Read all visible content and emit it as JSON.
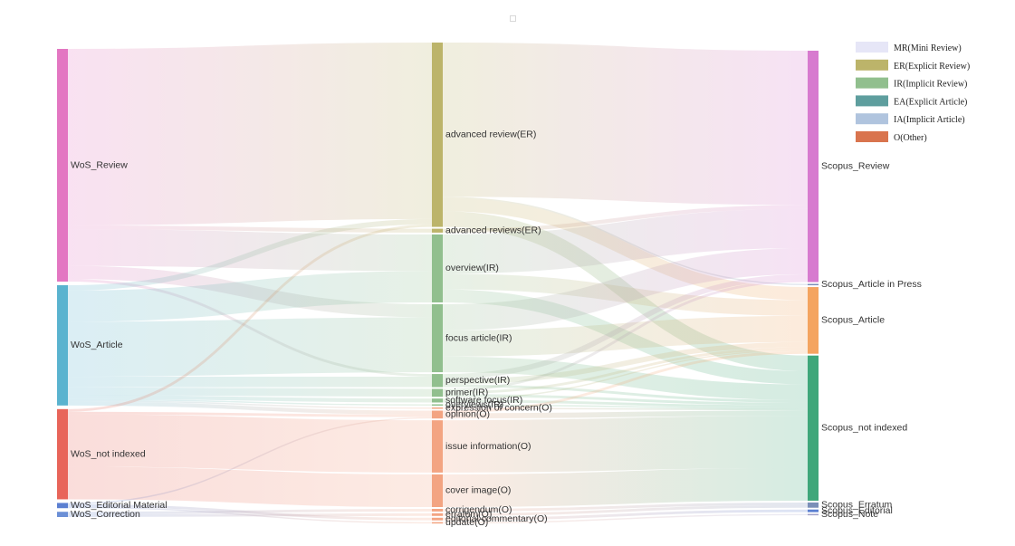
{
  "legend": [
    {
      "id": "MR",
      "label": "MR(Mini Review)",
      "color": "#e6e6f7"
    },
    {
      "id": "ER",
      "label": "ER(Explicit Review)",
      "color": "#bcb46a"
    },
    {
      "id": "IR",
      "label": "IR(Implicit Review)",
      "color": "#91bf8e"
    },
    {
      "id": "EA",
      "label": "EA(Explicit Article)",
      "color": "#5e9e9e"
    },
    {
      "id": "IA",
      "label": "IA(Implicit Article)",
      "color": "#b0c4de"
    },
    {
      "id": "O",
      "label": "O(Other)",
      "color": "#d9744e"
    }
  ],
  "nodes": {
    "left": [
      {
        "id": "wos_review",
        "label": "WoS_Review",
        "color": "#e377c2"
      },
      {
        "id": "wos_article",
        "label": "WoS_Article",
        "color": "#5ab3cf"
      },
      {
        "id": "wos_not_indexed",
        "label": "WoS_not indexed",
        "color": "#e8655a"
      },
      {
        "id": "wos_editorial",
        "label": "WoS_Editorial Material",
        "color": "#5b7fd1"
      },
      {
        "id": "wos_correction",
        "label": "WoS_Correction",
        "color": "#6b8fd6"
      }
    ],
    "middle": [
      {
        "id": "adv_review",
        "label": "advanced review(ER)",
        "color": "#bcb46a"
      },
      {
        "id": "adv_reviews",
        "label": "advanced reviews(ER)",
        "color": "#bcb46a"
      },
      {
        "id": "overview",
        "label": "overview(IR)",
        "color": "#91bf8e"
      },
      {
        "id": "focus",
        "label": "focus article(IR)",
        "color": "#91bf8e"
      },
      {
        "id": "perspective",
        "label": "perspective(IR)",
        "color": "#91bf8e"
      },
      {
        "id": "primer",
        "label": "primer(IR)",
        "color": "#91bf8e"
      },
      {
        "id": "software",
        "label": "software focus(IR)",
        "color": "#91bf8e"
      },
      {
        "id": "overviews",
        "label": "overviews(IR)",
        "color": "#91bf8e"
      },
      {
        "id": "concern",
        "label": "expression of concern(O)",
        "color": "#f3a482"
      },
      {
        "id": "opinion",
        "label": "opinion(O)",
        "color": "#f3a482"
      },
      {
        "id": "issue",
        "label": "issue information(O)",
        "color": "#f3a482"
      },
      {
        "id": "cover",
        "label": "cover image(O)",
        "color": "#f3a482"
      },
      {
        "id": "corrigendum",
        "label": "corrigendum(O)",
        "color": "#f3a482"
      },
      {
        "id": "erratum",
        "label": "erratum(O)",
        "color": "#f3a482"
      },
      {
        "id": "commentary",
        "label": "editorial commentary(O)",
        "color": "#f3a482"
      },
      {
        "id": "update",
        "label": "update(O)",
        "color": "#f3a482"
      }
    ],
    "right": [
      {
        "id": "sc_review",
        "label": "Scopus_Review",
        "color": "#d77bcf"
      },
      {
        "id": "sc_press",
        "label": "Scopus_Article in Press",
        "color": "#7b8fb8"
      },
      {
        "id": "sc_article",
        "label": "Scopus_Article",
        "color": "#f4a460"
      },
      {
        "id": "sc_not_indexed",
        "label": "Scopus_not indexed",
        "color": "#3fa77a"
      },
      {
        "id": "sc_erratum",
        "label": "Scopus_Erratum",
        "color": "#7b8fb8"
      },
      {
        "id": "sc_editorial",
        "label": "Scopus_Editorial",
        "color": "#5b7fd1"
      },
      {
        "id": "sc_note",
        "label": "Scopus_Note",
        "color": "#a0a0c8"
      }
    ]
  },
  "links": [
    {
      "source": "wos_review",
      "target": "adv_review",
      "value": 135
    },
    {
      "source": "wos_review",
      "target": "adv_reviews",
      "value": 3
    },
    {
      "source": "wos_review",
      "target": "overview",
      "value": 28
    },
    {
      "source": "wos_review",
      "target": "focus",
      "value": 10
    },
    {
      "source": "wos_review",
      "target": "perspective",
      "value": 2
    },
    {
      "source": "wos_article",
      "target": "adv_review",
      "value": 4
    },
    {
      "source": "wos_article",
      "target": "overview",
      "value": 24
    },
    {
      "source": "wos_article",
      "target": "focus",
      "value": 42
    },
    {
      "source": "wos_article",
      "target": "perspective",
      "value": 8
    },
    {
      "source": "wos_article",
      "target": "primer",
      "value": 6
    },
    {
      "source": "wos_article",
      "target": "software",
      "value": 3
    },
    {
      "source": "wos_article",
      "target": "overviews",
      "value": 1
    },
    {
      "source": "wos_article",
      "target": "concern",
      "value": 1
    },
    {
      "source": "wos_article",
      "target": "opinion",
      "value": 3
    },
    {
      "source": "wos_not_indexed",
      "target": "adv_review",
      "value": 2
    },
    {
      "source": "wos_not_indexed",
      "target": "opinion",
      "value": 2
    },
    {
      "source": "wos_not_indexed",
      "target": "issue",
      "value": 40
    },
    {
      "source": "wos_not_indexed",
      "target": "cover",
      "value": 25
    },
    {
      "source": "wos_editorial",
      "target": "commentary",
      "value": 2
    },
    {
      "source": "wos_editorial",
      "target": "update",
      "value": 1
    },
    {
      "source": "wos_editorial",
      "target": "opinion",
      "value": 1
    },
    {
      "source": "wos_correction",
      "target": "corrigendum",
      "value": 2
    },
    {
      "source": "wos_correction",
      "target": "erratum",
      "value": 2
    },
    {
      "source": "adv_review",
      "target": "sc_review",
      "value": 118
    },
    {
      "source": "adv_review",
      "target": "sc_article",
      "value": 10
    },
    {
      "source": "adv_review",
      "target": "sc_not_indexed",
      "value": 12
    },
    {
      "source": "adv_review",
      "target": "sc_press",
      "value": 1
    },
    {
      "source": "adv_reviews",
      "target": "sc_review",
      "value": 3
    },
    {
      "source": "overview",
      "target": "sc_review",
      "value": 30
    },
    {
      "source": "overview",
      "target": "sc_article",
      "value": 12
    },
    {
      "source": "overview",
      "target": "sc_not_indexed",
      "value": 10
    },
    {
      "source": "focus",
      "target": "sc_review",
      "value": 20
    },
    {
      "source": "focus",
      "target": "sc_article",
      "value": 20
    },
    {
      "source": "focus",
      "target": "sc_not_indexed",
      "value": 12
    },
    {
      "source": "perspective",
      "target": "sc_review",
      "value": 4
    },
    {
      "source": "perspective",
      "target": "sc_article",
      "value": 4
    },
    {
      "source": "perspective",
      "target": "sc_not_indexed",
      "value": 2
    },
    {
      "source": "primer",
      "target": "sc_review",
      "value": 2
    },
    {
      "source": "primer",
      "target": "sc_article",
      "value": 2
    },
    {
      "source": "primer",
      "target": "sc_not_indexed",
      "value": 2
    },
    {
      "source": "software",
      "target": "sc_article",
      "value": 1
    },
    {
      "source": "software",
      "target": "sc_not_indexed",
      "value": 2
    },
    {
      "source": "overviews",
      "target": "sc_not_indexed",
      "value": 1
    },
    {
      "source": "concern",
      "target": "sc_not_indexed",
      "value": 1
    },
    {
      "source": "opinion",
      "target": "sc_article",
      "value": 2
    },
    {
      "source": "opinion",
      "target": "sc_not_indexed",
      "value": 4
    },
    {
      "source": "issue",
      "target": "sc_not_indexed",
      "value": 40
    },
    {
      "source": "cover",
      "target": "sc_not_indexed",
      "value": 25
    },
    {
      "source": "corrigendum",
      "target": "sc_erratum",
      "value": 2
    },
    {
      "source": "erratum",
      "target": "sc_erratum",
      "value": 2
    },
    {
      "source": "commentary",
      "target": "sc_editorial",
      "value": 2
    },
    {
      "source": "update",
      "target": "sc_note",
      "value": 1
    }
  ]
}
